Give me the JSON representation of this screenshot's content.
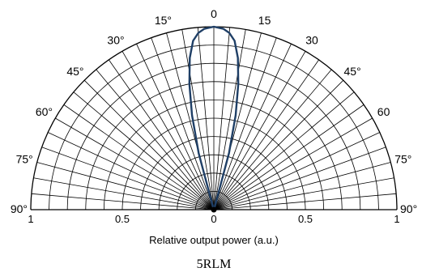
{
  "chart_data": {
    "type": "polar-line",
    "title": "",
    "caption": "5RLM",
    "xlabel": "Relative output power (a.u.)",
    "angle_labels": [
      {
        "angle": 90,
        "text": "90°"
      },
      {
        "angle": 75,
        "text": "75°"
      },
      {
        "angle": 60,
        "text": "60°"
      },
      {
        "angle": 45,
        "text": "45°"
      },
      {
        "angle": 30,
        "text": "30°"
      },
      {
        "angle": 15,
        "text": "15°"
      },
      {
        "angle": 0,
        "text": "0"
      },
      {
        "angle": -15,
        "text": "15"
      },
      {
        "angle": -30,
        "text": "30"
      },
      {
        "angle": -45,
        "text": "45°"
      },
      {
        "angle": -60,
        "text": "60"
      },
      {
        "angle": -75,
        "text": "75°"
      },
      {
        "angle": -90,
        "text": "90°"
      }
    ],
    "radius_labels": [
      {
        "side": "left",
        "value": 1,
        "text": "1"
      },
      {
        "side": "left",
        "value": 0.5,
        "text": "0.5"
      },
      {
        "side": "center",
        "value": 0,
        "text": "0"
      },
      {
        "side": "right",
        "value": 0.5,
        "text": "0.5"
      },
      {
        "side": "right",
        "value": 1,
        "text": "1"
      }
    ],
    "rlim": [
      0,
      1
    ],
    "angle_range_deg": [
      -90,
      90
    ],
    "grid": true,
    "radial_grid_step": 0.1,
    "angular_grid_step_deg": 5,
    "series": [
      {
        "color": "#1f3f66",
        "angles_deg": [
          -17,
          -15,
          -13,
          -11,
          -9,
          -7,
          -5,
          -3,
          0,
          3,
          5,
          7,
          9,
          11,
          13,
          15,
          17
        ],
        "values": [
          0.02,
          0.32,
          0.53,
          0.7,
          0.84,
          0.93,
          0.97,
          0.99,
          1.0,
          0.99,
          0.97,
          0.93,
          0.84,
          0.7,
          0.53,
          0.32,
          0.02
        ]
      }
    ]
  }
}
